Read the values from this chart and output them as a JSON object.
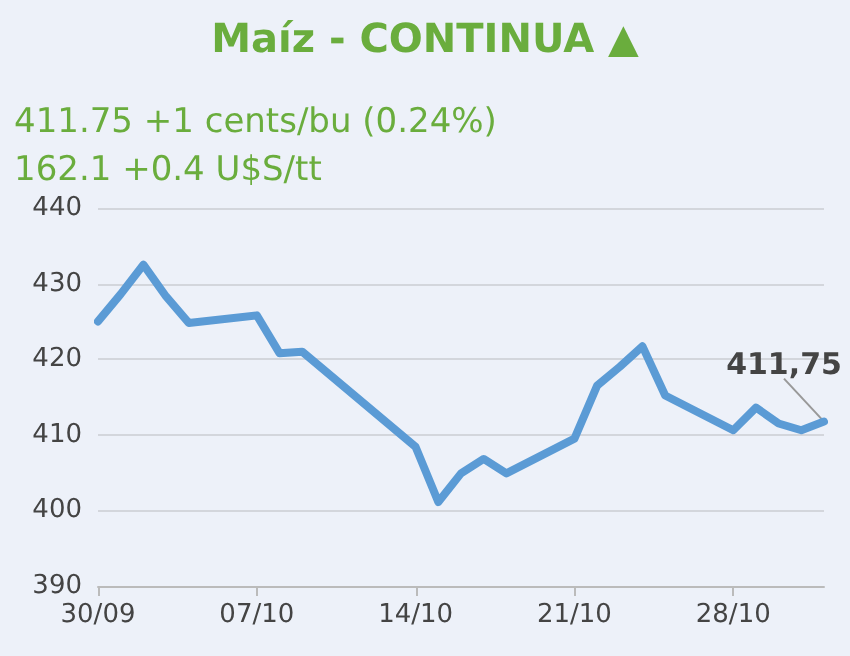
{
  "chart_data": {
    "type": "line",
    "title": "Maíz - CONTINUA ▲",
    "subtitle": "411.75 +1 cents/bu (0.24%)\n162.1 +0.4 U$S/tt",
    "x": [
      "--09-30",
      "--10-01",
      "--10-02",
      "--10-03",
      "--10-04",
      "--10-07",
      "--10-08",
      "--10-09",
      "--10-14",
      "--10-15",
      "--10-16",
      "--10-17",
      "--10-18",
      "--10-21",
      "--10-22",
      "--10-23",
      "--10-24",
      "--10-25",
      "--10-28",
      "--10-29",
      "--10-30",
      "--10-31",
      "--11-01"
    ],
    "series": [
      {
        "color": "#5b9bd5",
        "values": [
          425,
          428.6,
          432.5,
          428.3,
          424.8,
          425.8,
          420.8,
          421,
          408.4,
          401.1,
          404.9,
          406.8,
          404.9,
          409.5,
          416.5,
          419,
          421.7,
          415.2,
          410.6,
          413.6,
          411.5,
          410.6,
          411.75
        ]
      }
    ],
    "annotations": [
      {
        "text": "411,75",
        "x": "--11-01",
        "y": 411.75
      }
    ],
    "xlim": [
      "--09-30",
      "--11-01"
    ],
    "xticks": [
      {
        "value": "--09-30",
        "label": "30/09"
      },
      {
        "value": "--10-07",
        "label": "07/10"
      },
      {
        "value": "--10-14",
        "label": "14/10"
      },
      {
        "value": "--10-21",
        "label": "21/10"
      },
      {
        "value": "--10-28",
        "label": "28/10"
      }
    ],
    "ylim": [
      390,
      440
    ],
    "yticks": [
      390,
      400,
      410,
      420,
      430,
      440
    ],
    "grid": "y",
    "marker": "none",
    "line_style": "solid"
  }
}
